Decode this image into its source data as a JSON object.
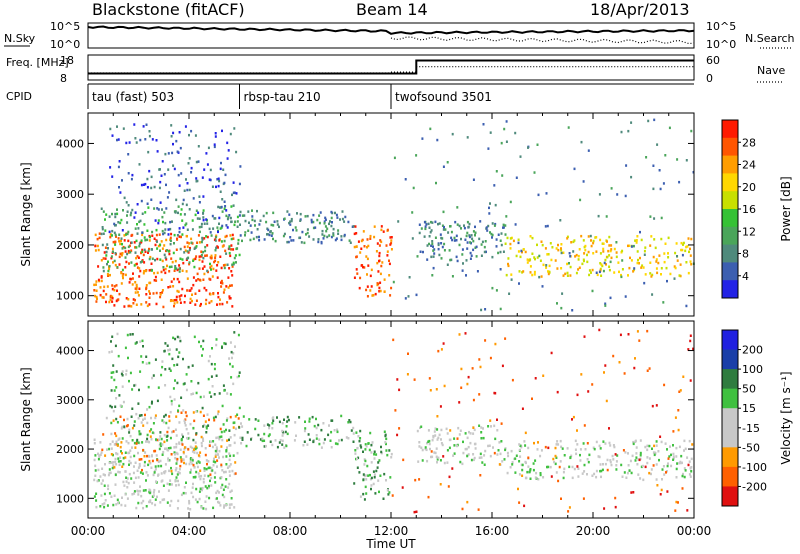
{
  "header": {
    "radar": "Blackstone (fitACF)",
    "beam": "Beam 14",
    "date": "18/Apr/2013"
  },
  "colors": {
    "power_scale": [
      "#2323e6",
      "#3c5fb0",
      "#4f8a7c",
      "#4aa55a",
      "#35c235",
      "#c8e000",
      "#ffd700",
      "#ff9d00",
      "#ff5500",
      "#ff1a00"
    ],
    "velocity_scale": [
      "#2020e0",
      "#1a3fa8",
      "#2f7c3f",
      "#40c040",
      "#c8c8c8",
      "#c8c8c8",
      "#ff9a00",
      "#ff6000",
      "#e01010"
    ],
    "ground_scatter": "#bcbcb8"
  },
  "chart_data": [
    {
      "name": "nsky-nsearch",
      "type": "line",
      "ylabel_left": "N.Sky",
      "ylabel_right": "N.Search",
      "left_ticks": [
        "10^5",
        "10^0"
      ],
      "right_ticks": [
        "10^5",
        "10^0"
      ]
    },
    {
      "name": "freq-nave",
      "type": "line",
      "ylabel_left": "Freq. [MHz]",
      "ylabel_right": "Nave",
      "left_ticks": [
        "18",
        "8"
      ],
      "right_ticks": [
        "60",
        "0"
      ],
      "freq_segments": [
        {
          "x0": 0,
          "x1": 13,
          "y": 10.6
        },
        {
          "x0": 13,
          "x1": 24,
          "y": 15.8
        }
      ],
      "nave_segments": [
        {
          "x0": 0,
          "x1": 12,
          "y": 17
        },
        {
          "x0": 12,
          "x1": 13,
          "y": 19
        },
        {
          "x0": 13,
          "x1": 24,
          "y": 32
        }
      ]
    },
    {
      "name": "cpid",
      "type": "table",
      "label": "CPID",
      "segments": [
        {
          "label": "tau (fast) 503",
          "start": 0,
          "end": 6
        },
        {
          "label": "rbsp-tau 210",
          "start": 6,
          "end": 12
        },
        {
          "label": "twofsound 3501",
          "start": 12,
          "end": 24
        }
      ]
    },
    {
      "name": "power",
      "type": "heatmap",
      "ylabel": "Slant Range [km]",
      "yticks": [
        1000,
        2000,
        3000,
        4000
      ],
      "ylim": [
        600,
        4600
      ],
      "xlim": [
        0,
        24
      ],
      "colorbar_label": "Power [dB]",
      "colorbar_ticks": [
        "28",
        "24",
        "20",
        "16",
        "12",
        "8",
        "4"
      ],
      "bands": [
        {
          "x0": 0.2,
          "x1": 5.8,
          "y0": 800,
          "y1": 2250,
          "c": 8,
          "density": 0.7
        },
        {
          "x0": 0.5,
          "x1": 6,
          "y0": 1500,
          "y1": 2800,
          "c": 3,
          "density": 0.45
        },
        {
          "x0": 0.8,
          "x1": 6,
          "y0": 2200,
          "y1": 4400,
          "c": 1,
          "density": 0.25
        },
        {
          "x0": 6,
          "x1": 10.5,
          "y0": 2050,
          "y1": 2700,
          "c": 2,
          "density": 0.7
        },
        {
          "x0": 10.5,
          "x1": 12,
          "y0": 1000,
          "y1": 2400,
          "c": 8,
          "density": 0.6
        },
        {
          "x0": 13,
          "x1": 16.5,
          "y0": 1700,
          "y1": 2500,
          "c": 2,
          "density": 0.65
        },
        {
          "x0": 16.5,
          "x1": 23.9,
          "y0": 1400,
          "y1": 2200,
          "c": 6,
          "density": 0.55
        },
        {
          "x0": 12,
          "x1": 24,
          "y0": 700,
          "y1": 4500,
          "c": 2,
          "density": 0.05
        }
      ]
    },
    {
      "name": "velocity",
      "type": "heatmap",
      "ylabel": "Slant Range [km]",
      "yticks": [
        1000,
        2000,
        3000,
        4000
      ],
      "ylim": [
        600,
        4600
      ],
      "xlim": [
        0,
        24
      ],
      "xticks": [
        "00:00",
        "04:00",
        "08:00",
        "12:00",
        "16:00",
        "20:00",
        "00:00"
      ],
      "xlabel": "Time UT",
      "colorbar_label": "Velocity [m s⁻¹]",
      "colorbar_ticks": [
        "200",
        "100",
        "50",
        "15",
        "-15",
        "-50",
        "-100",
        "-200"
      ],
      "bands": [
        {
          "x0": 0.2,
          "x1": 5.8,
          "y0": 800,
          "y1": 2250,
          "c": 4,
          "density": 0.75
        },
        {
          "x0": 0.5,
          "x1": 6,
          "y0": 1500,
          "y1": 2800,
          "c": 6,
          "density": 0.3
        },
        {
          "x0": 0.8,
          "x1": 6,
          "y0": 2200,
          "y1": 4400,
          "c": 3,
          "density": 0.3
        },
        {
          "x0": 6,
          "x1": 10.5,
          "y0": 2050,
          "y1": 2700,
          "c": 3,
          "density": 0.55
        },
        {
          "x0": 10.5,
          "x1": 12,
          "y0": 1000,
          "y1": 2400,
          "c": 3,
          "density": 0.6
        },
        {
          "x0": 13,
          "x1": 16.5,
          "y0": 1700,
          "y1": 2500,
          "c": 4,
          "density": 0.6
        },
        {
          "x0": 16.5,
          "x1": 23.9,
          "y0": 1400,
          "y1": 2200,
          "c": 4,
          "density": 0.55
        },
        {
          "x0": 12,
          "x1": 24,
          "y0": 700,
          "y1": 4500,
          "c": 7,
          "density": 0.05
        }
      ]
    }
  ]
}
